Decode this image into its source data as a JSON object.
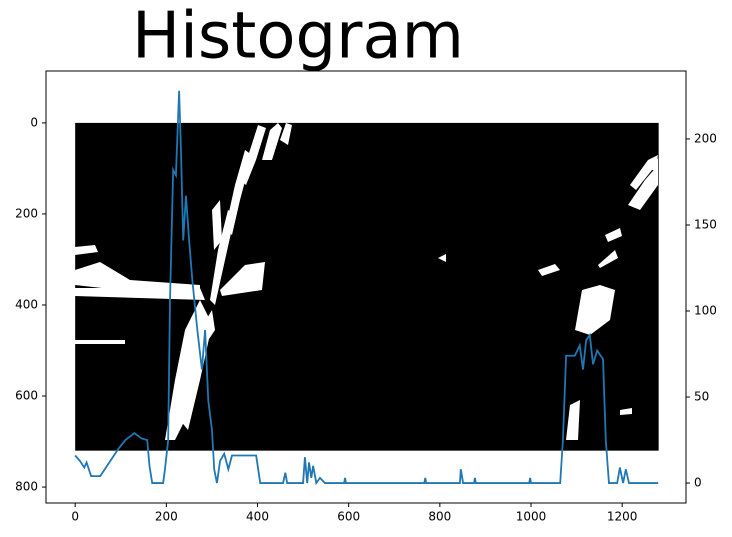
{
  "chart_data": {
    "type": "line",
    "title": "Histogram",
    "image_size": [
      1280,
      720
    ],
    "x": [
      0,
      10,
      20,
      25,
      35,
      55,
      75,
      95,
      110,
      130,
      145,
      158,
      163,
      169,
      193,
      197,
      204,
      208,
      215,
      221,
      228,
      232,
      237,
      243,
      250,
      257,
      268,
      278,
      285,
      292,
      300,
      305,
      311,
      318,
      327,
      336,
      344,
      397,
      406,
      456,
      461,
      465,
      500,
      504,
      509,
      513,
      518,
      522,
      529,
      537,
      548,
      590,
      592,
      594,
      766,
      768,
      770,
      844,
      846,
      851,
      875,
      877,
      879,
      996,
      998,
      1000,
      1064,
      1070,
      1077,
      1096,
      1107,
      1114,
      1121,
      1129,
      1136,
      1145,
      1158,
      1164,
      1171,
      1189,
      1195,
      1202,
      1208,
      1215,
      1279
    ],
    "series": [
      {
        "axis": "y2",
        "color": "#1f77b4",
        "values": [
          16,
          13,
          9,
          12,
          4,
          4,
          12,
          20,
          25,
          29,
          26,
          25,
          10,
          0,
          0,
          8,
          25,
          106,
          182,
          179,
          228,
          194,
          141,
          167,
          141,
          118,
          89,
          66,
          89,
          48,
          31,
          8,
          0,
          13,
          17,
          8,
          16,
          16,
          0,
          0,
          6,
          0,
          0,
          15,
          0,
          12,
          3,
          10,
          0,
          3,
          0,
          0,
          3,
          0,
          0,
          3,
          0,
          0,
          8,
          0,
          0,
          3,
          0,
          0,
          3,
          0,
          0,
          25,
          74,
          74,
          80,
          66,
          83,
          86,
          69,
          77,
          72,
          25,
          0,
          0,
          9,
          0,
          8,
          0,
          0
        ]
      }
    ],
    "xlim": [
      -64,
      1340
    ],
    "xticks": [
      0,
      200,
      400,
      600,
      800,
      1000,
      1200
    ],
    "ylim": [
      835,
      -114
    ],
    "yticks": [
      0,
      200,
      400,
      600,
      800
    ],
    "y2lim": [
      -11.6,
      239.5
    ],
    "y2ticks": [
      0,
      50,
      100,
      150,
      200
    ]
  }
}
